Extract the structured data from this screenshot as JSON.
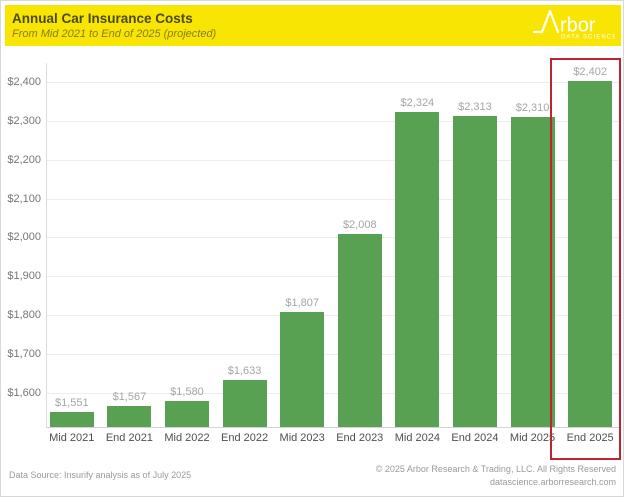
{
  "header": {
    "title": "Annual Car Insurance Costs",
    "subtitle": "From Mid 2021 to End of 2025 (projected)",
    "bg_color": "#F8E503",
    "title_color": "#4A4A10",
    "logo": {
      "name": "rbor",
      "tagline": "DATA SCIENCE",
      "color": "#FFFFFF"
    }
  },
  "chart_data": {
    "type": "bar",
    "title": "Annual Car Insurance Costs",
    "subtitle": "From Mid 2021 to End of 2025 (projected)",
    "categories": [
      "Mid 2021",
      "End 2021",
      "Mid 2022",
      "End 2022",
      "Mid 2023",
      "End 2023",
      "Mid 2024",
      "End 2024",
      "Mid 2025",
      "End 2025"
    ],
    "values": [
      1551,
      1567,
      1580,
      1633,
      1807,
      2008,
      2324,
      2313,
      2310,
      2402
    ],
    "labels": [
      "$1,551",
      "$1,567",
      "$1,580",
      "$1,633",
      "$1,807",
      "$2,008",
      "$2,324",
      "$2,313",
      "$2,310",
      "$2,402"
    ],
    "y_ticks": {
      "values": [
        2400,
        2300,
        2200,
        2100,
        2000,
        1900,
        1800,
        1700,
        1600
      ],
      "labels": [
        "$2,400",
        "$2,300",
        "$2,200",
        "$2,100",
        "$2,000",
        "$1,900",
        "$1,800",
        "$1,700",
        "$1,600"
      ]
    },
    "ylim": [
      1512,
      2450
    ],
    "grid": true,
    "legend": "none",
    "bar_color": "#58A152",
    "value_label_color": "#A5A5A5",
    "highlight": {
      "category": "End 2025",
      "index": 9,
      "box_color": "#BE2430"
    }
  },
  "footer": {
    "source": "Data Source: Insurify analysis as of July 2025",
    "copyright": "© 2025 Arbor Research & Trading, LLC. All Rights Reserved",
    "website": "datascience.arborresearch.com"
  }
}
